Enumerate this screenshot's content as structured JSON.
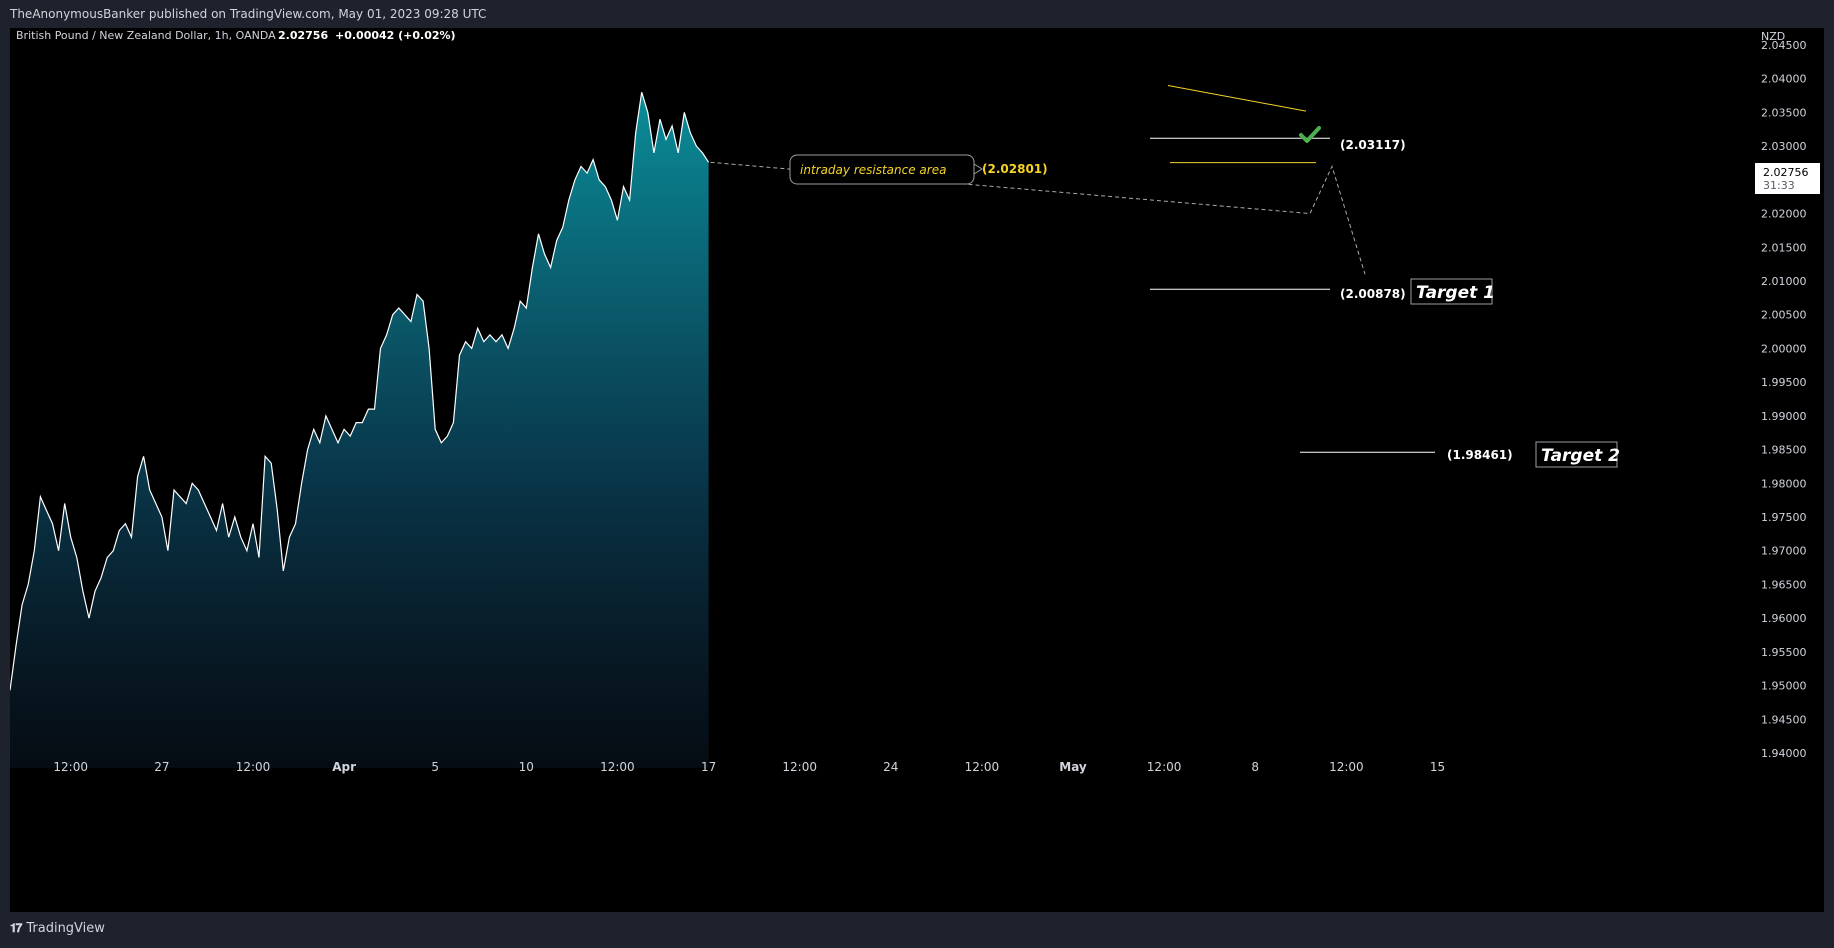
{
  "header": {
    "published_by": "TheAnonymousBanker published on TradingView.com, May 01, 2023 09:28 UTC"
  },
  "legend": {
    "symbol": "British Pound / New Zealand Dollar, 1h, OANDA",
    "last": "2.02756",
    "change": "+0.00042 (+0.02%)"
  },
  "price_axis": {
    "currency": "NZD",
    "last_price_label": "2.02756",
    "countdown": "31:33"
  },
  "annotations": {
    "resistance_label": "intraday resistance area",
    "resistance_price": "(2.02801)",
    "level_1": "(2.03117)",
    "target1_price": "(2.00878)",
    "target1_label": "Target 1",
    "target2_price": "(1.98461)",
    "target2_label": "Target 2",
    "check_icon": "check-icon"
  },
  "footer": {
    "brand": "TradingView",
    "logo_icon": "tradingview-logo-icon"
  },
  "colors": {
    "background": "#000000",
    "chrome": "#1e222d",
    "line": "#ffffff",
    "area_top": "#0b8d99",
    "resistance": "#f5d327",
    "check": "#4caf50"
  },
  "chart_data": {
    "type": "area",
    "y_unit": "NZD",
    "ylim": [
      1.94,
      2.045
    ],
    "y_ticks": [
      "2.04500",
      "2.04000",
      "2.03500",
      "2.03000",
      "2.02500",
      "2.02000",
      "2.01500",
      "2.01000",
      "2.00500",
      "2.00000",
      "1.99500",
      "1.99000",
      "1.98500",
      "1.98000",
      "1.97500",
      "1.97000",
      "1.96500",
      "1.96000",
      "1.95500",
      "1.95000",
      "1.94500",
      "1.94000"
    ],
    "x_ticks": [
      "12:00",
      "27",
      "12:00",
      "Apr",
      "5",
      "10",
      "12:00",
      "17",
      "12:00",
      "24",
      "12:00",
      "May",
      "12:00",
      "8",
      "12:00",
      "15"
    ],
    "x_tick_index": [
      10,
      25,
      40,
      55,
      70,
      85,
      100,
      115,
      130,
      145,
      160,
      175,
      190,
      205,
      220,
      235
    ],
    "x_range": [
      0,
      242
    ],
    "series": [
      {
        "values": [
          [
            0,
            1.9493
          ],
          [
            1,
            1.956
          ],
          [
            2,
            1.962
          ],
          [
            3,
            1.965
          ],
          [
            4,
            1.97
          ],
          [
            5,
            1.978
          ],
          [
            6,
            1.976
          ],
          [
            7,
            1.974
          ],
          [
            8,
            1.97
          ],
          [
            9,
            1.977
          ],
          [
            10,
            1.972
          ],
          [
            11,
            1.969
          ],
          [
            12,
            1.964
          ],
          [
            13,
            1.96
          ],
          [
            14,
            1.964
          ],
          [
            15,
            1.966
          ],
          [
            16,
            1.969
          ],
          [
            17,
            1.97
          ],
          [
            18,
            1.973
          ],
          [
            19,
            1.974
          ],
          [
            20,
            1.972
          ],
          [
            21,
            1.981
          ],
          [
            22,
            1.984
          ],
          [
            23,
            1.979
          ],
          [
            24,
            1.977
          ],
          [
            25,
            1.975
          ],
          [
            26,
            1.97
          ],
          [
            27,
            1.979
          ],
          [
            28,
            1.978
          ],
          [
            29,
            1.977
          ],
          [
            30,
            1.98
          ],
          [
            31,
            1.979
          ],
          [
            32,
            1.977
          ],
          [
            33,
            1.975
          ],
          [
            34,
            1.973
          ],
          [
            35,
            1.977
          ],
          [
            36,
            1.972
          ],
          [
            37,
            1.975
          ],
          [
            38,
            1.972
          ],
          [
            39,
            1.97
          ],
          [
            40,
            1.974
          ],
          [
            41,
            1.969
          ],
          [
            42,
            1.984
          ],
          [
            43,
            1.983
          ],
          [
            44,
            1.976
          ],
          [
            45,
            1.967
          ],
          [
            46,
            1.972
          ],
          [
            47,
            1.974
          ],
          [
            48,
            1.98
          ],
          [
            49,
            1.985
          ],
          [
            50,
            1.988
          ],
          [
            51,
            1.986
          ],
          [
            52,
            1.99
          ],
          [
            53,
            1.988
          ],
          [
            54,
            1.986
          ],
          [
            55,
            1.988
          ],
          [
            56,
            1.987
          ],
          [
            57,
            1.989
          ],
          [
            58,
            1.989
          ],
          [
            59,
            1.991
          ],
          [
            60,
            1.991
          ],
          [
            61,
            2.0
          ],
          [
            62,
            2.002
          ],
          [
            63,
            2.005
          ],
          [
            64,
            2.006
          ],
          [
            65,
            2.005
          ],
          [
            66,
            2.004
          ],
          [
            67,
            2.008
          ],
          [
            68,
            2.007
          ],
          [
            69,
            2.0
          ],
          [
            70,
            1.988
          ],
          [
            71,
            1.986
          ],
          [
            72,
            1.987
          ],
          [
            73,
            1.989
          ],
          [
            74,
            1.999
          ],
          [
            75,
            2.001
          ],
          [
            76,
            2.0
          ],
          [
            77,
            2.003
          ],
          [
            78,
            2.001
          ],
          [
            79,
            2.002
          ],
          [
            80,
            2.001
          ],
          [
            81,
            2.002
          ],
          [
            82,
            2.0
          ],
          [
            83,
            2.003
          ],
          [
            84,
            2.007
          ],
          [
            85,
            2.006
          ],
          [
            86,
            2.012
          ],
          [
            87,
            2.017
          ],
          [
            88,
            2.014
          ],
          [
            89,
            2.012
          ],
          [
            90,
            2.016
          ],
          [
            91,
            2.018
          ],
          [
            92,
            2.022
          ],
          [
            93,
            2.025
          ],
          [
            94,
            2.027
          ],
          [
            95,
            2.026
          ],
          [
            96,
            2.028
          ],
          [
            97,
            2.025
          ],
          [
            98,
            2.024
          ],
          [
            99,
            2.022
          ],
          [
            100,
            2.019
          ],
          [
            101,
            2.024
          ],
          [
            102,
            2.022
          ],
          [
            103,
            2.032
          ],
          [
            104,
            2.038
          ],
          [
            105,
            2.035
          ],
          [
            106,
            2.029
          ],
          [
            107,
            2.034
          ],
          [
            108,
            2.031
          ],
          [
            109,
            2.033
          ],
          [
            110,
            2.029
          ],
          [
            111,
            2.035
          ],
          [
            112,
            2.032
          ],
          [
            113,
            2.03
          ],
          [
            114,
            2.029
          ],
          [
            115,
            2.0276
          ]
        ]
      }
    ]
  }
}
